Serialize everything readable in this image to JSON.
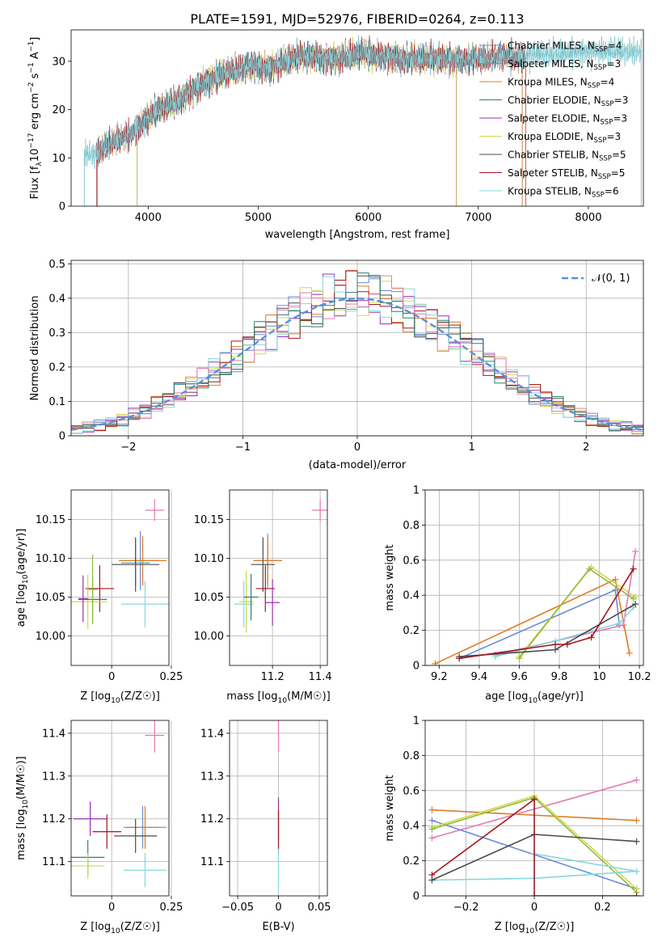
{
  "figure": {
    "title": "PLATE=1591, MJD=52976, FIBERID=0264, z=0.113"
  },
  "colors": {
    "chabrier_miles": "#6a8bd6",
    "salpeter_miles": "#56a6a6",
    "kroupa_miles": "#e07b23",
    "chabrier_elodie": "#2f7f6f",
    "salpeter_elodie": "#9b2fb0",
    "kroupa_elodie": "#d4d84a",
    "chabrier_stelib": "#4b4b4b",
    "salpeter_stelib": "#a0181e",
    "kroupa_stelib": "#84d8e0",
    "normal_curve": "#5b8fdc",
    "extra_pink": "#e47ab4",
    "extra_olive": "#8fbc3c"
  },
  "chart_data": [
    {
      "id": "spectrum",
      "type": "line",
      "title": "PLATE=1591, MJD=52976, FIBERID=0264, z=0.113",
      "xlabel": "wavelength [Angstrom, rest frame]",
      "ylabel": "Flux [f_λ10^-17 erg cm^-2 s^-1 A^-1]",
      "ylabel_parts": {
        "pre": "Flux [f",
        "sub": "λ",
        "mid": "10",
        "sup1": "−17",
        "mid2": " erg cm",
        "sup2": "−2",
        "mid3": " s",
        "sup3": "−1",
        "mid4": " A",
        "sup4": "−1",
        "post": "]"
      },
      "xlim": [
        3300,
        8500
      ],
      "ylim": [
        0,
        36.5
      ],
      "xticks": [
        4000,
        5000,
        6000,
        7000,
        8000
      ],
      "yticks": [
        0,
        10,
        20,
        30
      ],
      "legend_position": "top-right",
      "legend": [
        {
          "key": "chabrier_miles",
          "label": "Chabrier MILES, N",
          "sub": "SSP",
          "suffix": "=4"
        },
        {
          "key": "salpeter_miles",
          "label": "Salpeter MILES, N",
          "sub": "SSP",
          "suffix": "=3"
        },
        {
          "key": "kroupa_miles",
          "label": "Kroupa MILES, N",
          "sub": "SSP",
          "suffix": "=4"
        },
        {
          "key": "chabrier_elodie",
          "label": "Chabrier ELODIE, N",
          "sub": "SSP",
          "suffix": "=3"
        },
        {
          "key": "salpeter_elodie",
          "label": "Salpeter ELODIE, N",
          "sub": "SSP",
          "suffix": "=3"
        },
        {
          "key": "kroupa_elodie",
          "label": "Kroupa ELODIE, N",
          "sub": "SSP",
          "suffix": "=3"
        },
        {
          "key": "chabrier_stelib",
          "label": "Chabrier STELIB, N",
          "sub": "SSP",
          "suffix": "=5"
        },
        {
          "key": "salpeter_stelib",
          "label": "Salpeter STELIB, N",
          "sub": "SSP",
          "suffix": "=5"
        },
        {
          "key": "kroupa_stelib",
          "label": "Kroupa STELIB, N",
          "sub": "SSP",
          "suffix": "=6"
        }
      ],
      "continuum": {
        "x": [
          3420,
          3500,
          3600,
          3700,
          3800,
          3900,
          4000,
          4100,
          4200,
          4300,
          4400,
          4500,
          4600,
          4700,
          4800,
          4900,
          5000,
          5100,
          5200,
          5300,
          5400,
          5500,
          5600,
          5700,
          5800,
          5900,
          6000,
          6100,
          6200,
          6300,
          6400,
          6500,
          6600,
          6700,
          6800,
          6900,
          7000,
          7100,
          7200,
          7300,
          7400,
          7500,
          7600,
          7700,
          7800,
          7900,
          8000,
          8100,
          8200,
          8300,
          8400
        ],
        "y": [
          11,
          10.5,
          12,
          13.5,
          14.5,
          16,
          18.5,
          20,
          21,
          22,
          24,
          25.5,
          26.5,
          27.5,
          28,
          29,
          29,
          28.5,
          29.5,
          30.5,
          31,
          31,
          30.5,
          30.5,
          31,
          31.5,
          31.5,
          31,
          31,
          30.5,
          30.5,
          30.5,
          30.5,
          30.5,
          30.5,
          30.5,
          30.5,
          30.5,
          31,
          31,
          31,
          31.5,
          31.5,
          31.5,
          31.5,
          32,
          32,
          32,
          32,
          32,
          32
        ]
      },
      "model_ranges": {
        "chabrier_miles": [
          3540,
          7400
        ],
        "salpeter_miles": [
          3540,
          7400
        ],
        "kroupa_miles": [
          3540,
          7400
        ],
        "chabrier_elodie": [
          3900,
          6800
        ],
        "salpeter_elodie": [
          3900,
          6800
        ],
        "kroupa_elodie": [
          3900,
          6800
        ],
        "chabrier_stelib": [
          3420,
          8480
        ],
        "salpeter_stelib": [
          3530,
          7430
        ],
        "kroupa_stelib": [
          3420,
          8480
        ]
      }
    },
    {
      "id": "residuals",
      "type": "line",
      "xlabel": "(data-model)/error",
      "ylabel": "Normed distribution",
      "xlim": [
        -2.5,
        2.5
      ],
      "ylim": [
        0,
        0.51
      ],
      "xticks": [
        -2,
        -1,
        0,
        1,
        2
      ],
      "yticks": [
        0.0,
        0.1,
        0.2,
        0.3,
        0.4,
        0.5
      ],
      "grid": true,
      "legend_position": "top-right",
      "legend_label": "𝒩(0, 1)",
      "bin_width": 0.1,
      "normal_mean": 0,
      "normal_sigma": 1
    },
    {
      "id": "age_vs_Z",
      "type": "scatter",
      "xlabel": "Z [log10(Z/Z☉)]",
      "xlabel_parts": {
        "pre": "Z [log",
        "sub": "10",
        "post": "(Z/Z☉)]"
      },
      "ylabel": "age [log10(age/yr)]",
      "ylabel_parts": {
        "pre": "age  [log",
        "sub": "10",
        "post": "(age/yr)]"
      },
      "xlim": [
        -0.17,
        0.24
      ],
      "ylim": [
        9.962,
        10.188
      ],
      "xticks": [
        0.0,
        0.25
      ],
      "ytick_values": [
        10.0,
        10.05,
        10.1,
        10.15
      ],
      "yticks": [
        "10.00",
        "10.05",
        "10.10",
        "10.15"
      ],
      "grid": true,
      "points": [
        {
          "c": "chabrier_miles",
          "x": 0.12,
          "y": 10.097,
          "xe": 0.08,
          "ye": 0.038
        },
        {
          "c": "kroupa_miles",
          "x": 0.13,
          "y": 10.097,
          "xe": 0.1,
          "ye": 0.032
        },
        {
          "c": "salpeter_miles",
          "x": 0.1,
          "y": 10.094,
          "xe": 0.06,
          "ye": 0.03
        },
        {
          "c": "chabrier_stelib",
          "x": 0.1,
          "y": 10.092,
          "xe": 0.1,
          "ye": 0.035
        },
        {
          "c": "salpeter_stelib",
          "x": -0.05,
          "y": 10.061,
          "xe": 0.06,
          "ye": 0.03
        },
        {
          "c": "kroupa_stelib",
          "x": 0.14,
          "y": 10.041,
          "xe": 0.1,
          "ye": 0.03
        },
        {
          "c": "kroupa_elodie",
          "x": -0.1,
          "y": 10.044,
          "xe": 0.08,
          "ye": 0.035
        },
        {
          "c": "chabrier_elodie",
          "x": -0.08,
          "y": 10.047,
          "xe": 0.06,
          "ye": 0.03
        },
        {
          "c": "extra_olive",
          "x": -0.08,
          "y": 10.06,
          "xe": 0.02,
          "ye": 0.045
        },
        {
          "c": "salpeter_elodie",
          "x": -0.12,
          "y": 10.048,
          "xe": 0.02,
          "ye": 0.03
        },
        {
          "c": "extra_pink",
          "x": 0.18,
          "y": 10.162,
          "xe": 0.04,
          "ye": 0.014
        }
      ]
    },
    {
      "id": "age_vs_mass",
      "type": "scatter",
      "xlabel": "mass [log10(M/M☉)]",
      "xlabel_parts": {
        "pre": "mass [log",
        "sub": "10",
        "post": "(M/M☉)]"
      },
      "ylabel": "",
      "xlim": [
        11.02,
        11.43
      ],
      "ylim": [
        9.962,
        10.188
      ],
      "xticks": [
        11.2,
        11.4
      ],
      "ytick_values": [
        10.0,
        10.05,
        10.1,
        10.15
      ],
      "yticks": [
        "10.00",
        "10.05",
        "10.10",
        "10.15"
      ],
      "grid": true,
      "points": [
        {
          "c": "chabrier_miles",
          "x": 11.18,
          "y": 10.097,
          "xe": 0.06,
          "ye": 0.035
        },
        {
          "c": "kroupa_miles",
          "x": 11.18,
          "y": 10.097,
          "xe": 0.06,
          "ye": 0.03
        },
        {
          "c": "chabrier_stelib",
          "x": 11.16,
          "y": 10.092,
          "xe": 0.05,
          "ye": 0.035
        },
        {
          "c": "salpeter_stelib",
          "x": 11.17,
          "y": 10.061,
          "xe": 0.04,
          "ye": 0.03
        },
        {
          "c": "salpeter_elodie",
          "x": 11.2,
          "y": 10.043,
          "xe": 0.03,
          "ye": 0.03
        },
        {
          "c": "kroupa_stelib",
          "x": 11.08,
          "y": 10.041,
          "xe": 0.04,
          "ye": 0.03
        },
        {
          "c": "kroupa_elodie",
          "x": 11.09,
          "y": 10.044,
          "xe": 0.03,
          "ye": 0.04
        },
        {
          "c": "chabrier_elodie",
          "x": 11.11,
          "y": 10.05,
          "xe": 0.03,
          "ye": 0.03
        },
        {
          "c": "extra_pink",
          "x": 11.4,
          "y": 10.162,
          "xe": 0.035,
          "ye": 0.014
        }
      ]
    },
    {
      "id": "weights_vs_age",
      "type": "line",
      "xlabel": "age [log10(age/yr)]",
      "xlabel_parts": {
        "pre": "age  [log",
        "sub": "10",
        "post": "(age/yr)]"
      },
      "ylabel": "mass weight",
      "xlim": [
        9.13,
        10.22
      ],
      "ylim": [
        0,
        1.0
      ],
      "xticks": [
        9.2,
        9.4,
        9.6,
        9.8,
        10.0,
        10.2
      ],
      "yticks": [
        0.0,
        0.2,
        0.4,
        0.6,
        0.8,
        1.0
      ],
      "grid": true,
      "series": [
        {
          "c": "kroupa_miles",
          "x": [
            9.18,
            10.08,
            10.15
          ],
          "y": [
            0.01,
            0.49,
            0.07
          ]
        },
        {
          "c": "chabrier_miles",
          "x": [
            9.3,
            10.08,
            10.1
          ],
          "y": [
            0.04,
            0.43,
            0.23
          ]
        },
        {
          "c": "kroupa_elodie",
          "x": [
            9.6,
            9.96,
            10.18
          ],
          "y": [
            0.05,
            0.56,
            0.39
          ]
        },
        {
          "c": "extra_olive",
          "x": [
            9.6,
            9.95,
            10.17
          ],
          "y": [
            0.04,
            0.55,
            0.38
          ]
        },
        {
          "c": "extra_pink",
          "x": [
            9.48,
            10.12,
            10.18
          ],
          "y": [
            0.06,
            0.23,
            0.65
          ]
        },
        {
          "c": "kroupa_stelib",
          "x": [
            9.48,
            9.78,
            10.1,
            10.17
          ],
          "y": [
            0.05,
            0.14,
            0.24,
            0.33
          ]
        },
        {
          "c": "chabrier_stelib",
          "x": [
            9.3,
            9.78,
            10.18
          ],
          "y": [
            0.05,
            0.09,
            0.35
          ]
        },
        {
          "c": "salpeter_stelib",
          "x": [
            9.3,
            9.78,
            9.84,
            9.96,
            10.17
          ],
          "y": [
            0.04,
            0.12,
            0.12,
            0.16,
            0.55
          ]
        }
      ]
    },
    {
      "id": "mass_vs_Z",
      "type": "scatter",
      "xlabel": "Z [log10(Z/Z☉)]",
      "xlabel_parts": {
        "pre": "Z [log",
        "sub": "10",
        "post": "(Z/Z☉)]"
      },
      "ylabel": "mass [log10(M/M☉)]",
      "ylabel_parts": {
        "pre": "mass [log",
        "sub": "10",
        "post": "(M/M☉)]"
      },
      "xlim": [
        -0.17,
        0.24
      ],
      "ylim": [
        11.02,
        11.43
      ],
      "xticks": [
        0.0,
        0.25
      ],
      "yticks": [
        11.1,
        11.2,
        11.3,
        11.4
      ],
      "grid": true,
      "points": [
        {
          "c": "salpeter_elodie",
          "x": -0.09,
          "y": 11.2,
          "xe": 0.07,
          "ye": 0.04
        },
        {
          "c": "chabrier_miles",
          "x": 0.13,
          "y": 11.18,
          "xe": 0.07,
          "ye": 0.05
        },
        {
          "c": "kroupa_miles",
          "x": 0.14,
          "y": 11.18,
          "xe": 0.09,
          "ye": 0.05
        },
        {
          "c": "salpeter_stelib",
          "x": -0.02,
          "y": 11.17,
          "xe": 0.06,
          "ye": 0.04
        },
        {
          "c": "chabrier_stelib",
          "x": 0.1,
          "y": 11.16,
          "xe": 0.09,
          "ye": 0.04
        },
        {
          "c": "chabrier_elodie",
          "x": -0.1,
          "y": 11.11,
          "xe": 0.07,
          "ye": 0.04
        },
        {
          "c": "kroupa_elodie",
          "x": -0.1,
          "y": 11.09,
          "xe": 0.07,
          "ye": 0.03
        },
        {
          "c": "kroupa_stelib",
          "x": 0.14,
          "y": 11.08,
          "xe": 0.09,
          "ye": 0.04
        },
        {
          "c": "extra_pink",
          "x": 0.18,
          "y": 11.395,
          "xe": 0.04,
          "ye": 0.04
        }
      ]
    },
    {
      "id": "mass_vs_EBV",
      "type": "scatter",
      "xlabel": "E(B-V)",
      "ylabel": "",
      "xlim": [
        -0.06,
        0.06
      ],
      "ylim": [
        11.02,
        11.43
      ],
      "xticks": [
        -0.05,
        0.0,
        0.05
      ],
      "yticks": [
        11.1,
        11.2,
        11.3,
        11.4
      ],
      "grid": true,
      "points": [
        {
          "c": "extra_pink",
          "x": 0.0,
          "y": 11.395,
          "xe": 0.0,
          "ye": 0.04
        },
        {
          "c": "salpeter_elodie",
          "x": 0.0,
          "y": 11.2,
          "xe": 0.0,
          "ye": 0.05
        },
        {
          "c": "salpeter_stelib",
          "x": 0.0,
          "y": 11.17,
          "xe": 0.0,
          "ye": 0.05
        },
        {
          "c": "kroupa_stelib",
          "x": 0.0,
          "y": 11.08,
          "xe": 0.0,
          "ye": 0.05
        }
      ]
    },
    {
      "id": "weights_vs_Z",
      "type": "line",
      "xlabel": "Z [log10(Z/Z☉)]",
      "xlabel_parts": {
        "pre": "Z [log",
        "sub": "10",
        "post": "(Z/Z☉)]"
      },
      "ylabel": "mass weight",
      "xlim": [
        -0.32,
        0.32
      ],
      "ylim": [
        0,
        1.0
      ],
      "xticks": [
        -0.2,
        0.0,
        0.2
      ],
      "yticks": [
        0.0,
        0.2,
        0.4,
        0.6,
        0.8,
        1.0
      ],
      "grid": true,
      "series": [
        {
          "c": "kroupa_miles",
          "x": [
            -0.3,
            0.3
          ],
          "y": [
            0.49,
            0.43
          ]
        },
        {
          "c": "extra_pink",
          "x": [
            -0.3,
            0.3
          ],
          "y": [
            0.33,
            0.66
          ]
        },
        {
          "c": "chabrier_miles",
          "x": [
            -0.3,
            0.3
          ],
          "y": [
            0.43,
            0.04
          ]
        },
        {
          "c": "kroupa_elodie",
          "x": [
            -0.3,
            0.0,
            0.3
          ],
          "y": [
            0.39,
            0.57,
            0.04
          ]
        },
        {
          "c": "extra_olive",
          "x": [
            -0.3,
            0.0,
            0.3
          ],
          "y": [
            0.38,
            0.56,
            0.02
          ]
        },
        {
          "c": "kroupa_stelib",
          "x": [
            -0.3,
            0.0,
            0.3
          ],
          "y": [
            0.09,
            0.1,
            0.14
          ]
        },
        {
          "c": "chabrier_stelib",
          "x": [
            -0.3,
            0.0,
            0.3
          ],
          "y": [
            0.09,
            0.35,
            0.31
          ]
        },
        {
          "c": "kroupa_stelib",
          "x": [
            0.0,
            0.3
          ],
          "y": [
            0.24,
            0.14
          ]
        },
        {
          "c": "salpeter_stelib",
          "x": [
            -0.3,
            0.0,
            0.0,
            0.3
          ],
          "y": [
            0.12,
            0.55,
            0.0,
            0.0
          ]
        }
      ]
    }
  ]
}
